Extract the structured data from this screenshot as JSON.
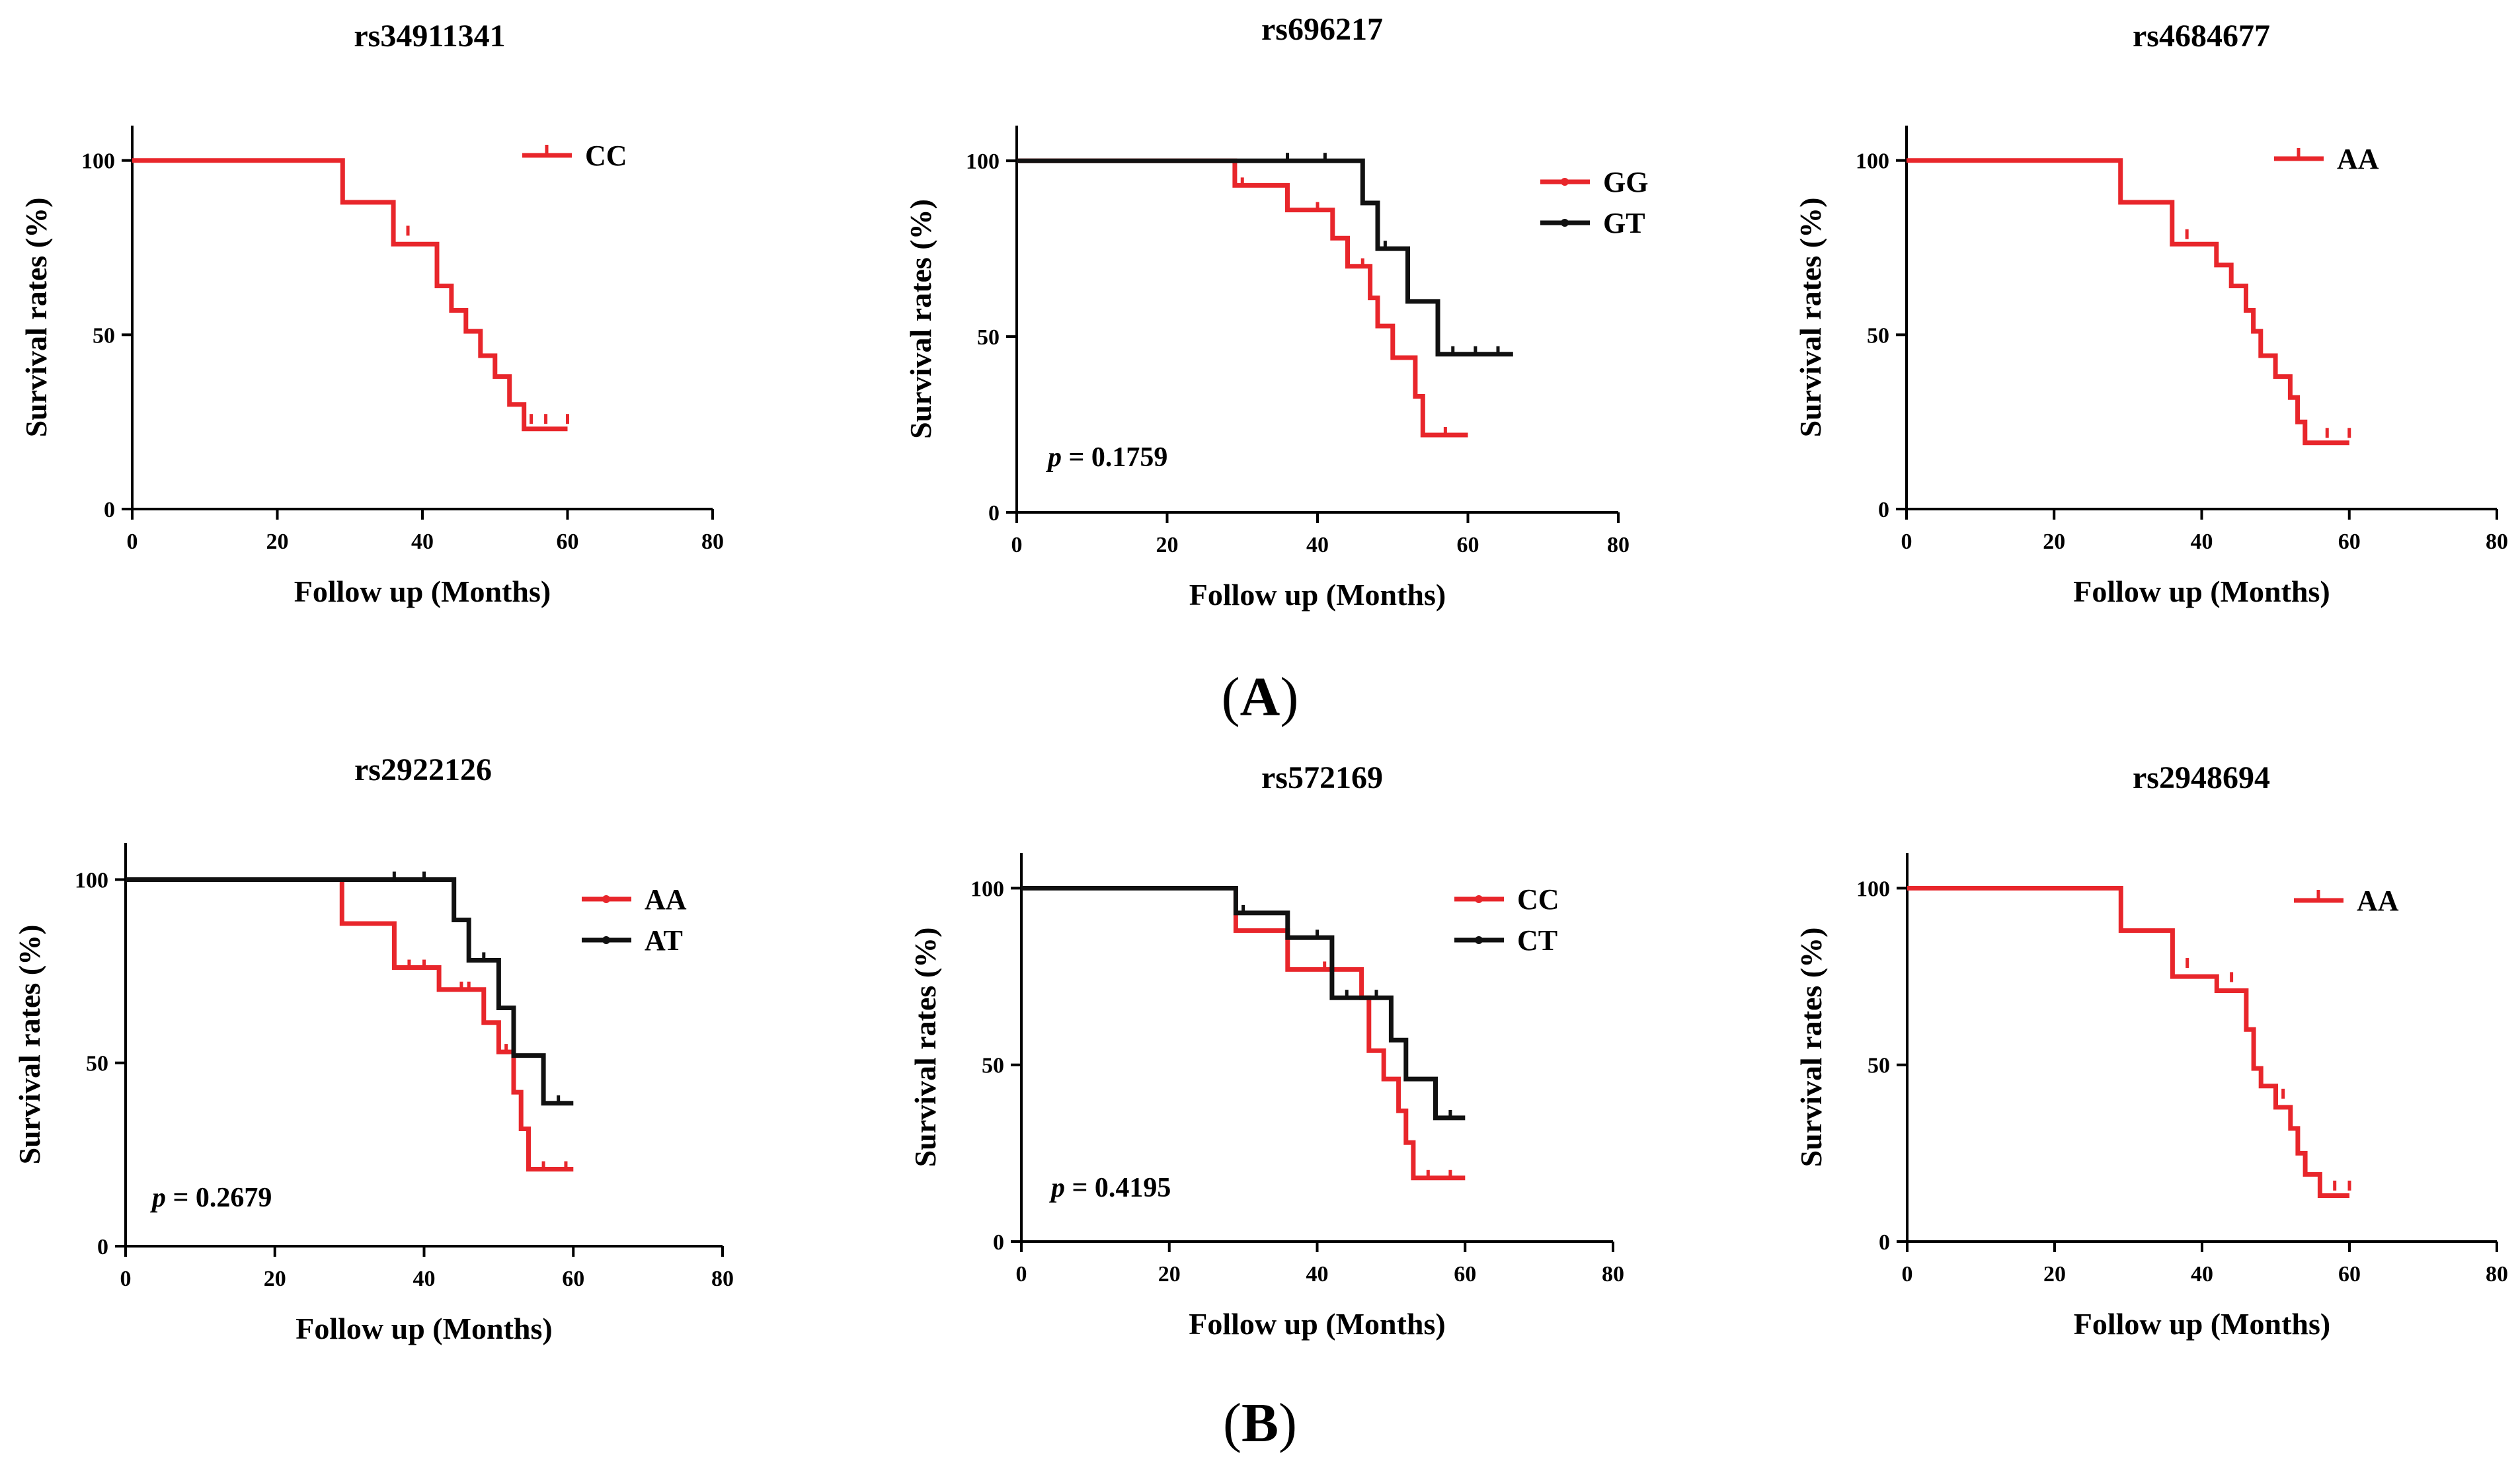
{
  "figure": {
    "panel_labels": [
      {
        "paren_open": "(",
        "letter": "A",
        "paren_close": ")"
      },
      {
        "paren_open": "(",
        "letter": "B",
        "paren_close": ")"
      }
    ],
    "colors": {
      "red": "#e8262b",
      "black": "#111111"
    }
  },
  "chart_data": [
    {
      "type": "line",
      "subtype": "kaplan-meier",
      "title": "rs34911341",
      "xlabel": "Follow up (Months)",
      "ylabel": "Survival rates (%)",
      "xlim": [
        0,
        80
      ],
      "ylim": [
        0,
        110
      ],
      "xticks": [
        0,
        20,
        40,
        60,
        80
      ],
      "yticks": [
        0,
        50,
        100
      ],
      "pvalue": null,
      "series": [
        {
          "name": "CC",
          "color": "#e8262b",
          "steps": [
            [
              0,
              100
            ],
            [
              29,
              100
            ],
            [
              29,
              88
            ],
            [
              36,
              88
            ],
            [
              36,
              76
            ],
            [
              42,
              76
            ],
            [
              42,
              64
            ],
            [
              44,
              64
            ],
            [
              44,
              57
            ],
            [
              46,
              57
            ],
            [
              46,
              51
            ],
            [
              48,
              51
            ],
            [
              48,
              44
            ],
            [
              50,
              44
            ],
            [
              50,
              38
            ],
            [
              52,
              38
            ],
            [
              52,
              30
            ],
            [
              54,
              30
            ],
            [
              54,
              23
            ],
            [
              60,
              23
            ]
          ],
          "censor": [
            [
              38,
              79
            ],
            [
              55,
              25
            ],
            [
              57,
              25
            ],
            [
              60,
              25
            ]
          ]
        }
      ]
    },
    {
      "type": "line",
      "subtype": "kaplan-meier",
      "title": "rs696217",
      "xlabel": "Follow up (Months)",
      "ylabel": "Survival rates (%)",
      "xlim": [
        0,
        80
      ],
      "ylim": [
        0,
        110
      ],
      "xticks": [
        0,
        20,
        40,
        60,
        80
      ],
      "yticks": [
        0,
        50,
        100
      ],
      "pvalue": {
        "label": "p",
        "text": " = 0.1759"
      },
      "series": [
        {
          "name": "GG",
          "color": "#e8262b",
          "steps": [
            [
              0,
              100
            ],
            [
              29,
              100
            ],
            [
              29,
              93
            ],
            [
              36,
              93
            ],
            [
              36,
              86
            ],
            [
              42,
              86
            ],
            [
              42,
              78
            ],
            [
              44,
              78
            ],
            [
              44,
              70
            ],
            [
              47,
              70
            ],
            [
              47,
              61
            ],
            [
              48,
              61
            ],
            [
              48,
              53
            ],
            [
              50,
              53
            ],
            [
              50,
              44
            ],
            [
              53,
              44
            ],
            [
              53,
              33
            ],
            [
              54,
              33
            ],
            [
              54,
              22
            ],
            [
              60,
              22
            ]
          ],
          "censor": [
            [
              30,
              93
            ],
            [
              40,
              86
            ],
            [
              46,
              70
            ],
            [
              50,
              44
            ],
            [
              57,
              22
            ]
          ]
        },
        {
          "name": "GT",
          "color": "#111111",
          "steps": [
            [
              0,
              100
            ],
            [
              46,
              100
            ],
            [
              46,
              88
            ],
            [
              48,
              88
            ],
            [
              48,
              75
            ],
            [
              52,
              75
            ],
            [
              52,
              60
            ],
            [
              56,
              60
            ],
            [
              56,
              45
            ],
            [
              66,
              45
            ]
          ],
          "censor": [
            [
              36,
              100
            ],
            [
              41,
              100
            ],
            [
              49,
              75
            ],
            [
              58,
              45
            ],
            [
              61,
              45
            ],
            [
              64,
              45
            ]
          ]
        }
      ]
    },
    {
      "type": "line",
      "subtype": "kaplan-meier",
      "title": "rs4684677",
      "xlabel": "Follow up (Months)",
      "ylabel": "Survival rates (%)",
      "xlim": [
        0,
        80
      ],
      "ylim": [
        0,
        110
      ],
      "xticks": [
        0,
        20,
        40,
        60,
        80
      ],
      "yticks": [
        0,
        50,
        100
      ],
      "pvalue": null,
      "series": [
        {
          "name": "AA",
          "color": "#e8262b",
          "steps": [
            [
              0,
              100
            ],
            [
              29,
              100
            ],
            [
              29,
              88
            ],
            [
              36,
              88
            ],
            [
              36,
              76
            ],
            [
              42,
              76
            ],
            [
              42,
              70
            ],
            [
              44,
              70
            ],
            [
              44,
              64
            ],
            [
              46,
              64
            ],
            [
              46,
              57
            ],
            [
              47,
              57
            ],
            [
              47,
              51
            ],
            [
              48,
              51
            ],
            [
              48,
              44
            ],
            [
              50,
              44
            ],
            [
              50,
              38
            ],
            [
              52,
              38
            ],
            [
              52,
              32
            ],
            [
              53,
              32
            ],
            [
              53,
              25
            ],
            [
              54,
              25
            ],
            [
              54,
              19
            ],
            [
              60,
              19
            ]
          ],
          "censor": [
            [
              38,
              78
            ],
            [
              57,
              21
            ],
            [
              60,
              21
            ]
          ]
        }
      ]
    },
    {
      "type": "line",
      "subtype": "kaplan-meier",
      "title": "rs2922126",
      "xlabel": "Follow up (Months)",
      "ylabel": "Survival rates (%)",
      "xlim": [
        0,
        80
      ],
      "ylim": [
        0,
        110
      ],
      "xticks": [
        0,
        20,
        40,
        60,
        80
      ],
      "yticks": [
        0,
        50,
        100
      ],
      "pvalue": {
        "label": "p",
        "text": " = 0.2679"
      },
      "series": [
        {
          "name": "AA",
          "color": "#e8262b",
          "steps": [
            [
              0,
              100
            ],
            [
              29,
              100
            ],
            [
              29,
              88
            ],
            [
              36,
              88
            ],
            [
              36,
              76
            ],
            [
              42,
              76
            ],
            [
              42,
              70
            ],
            [
              48,
              70
            ],
            [
              48,
              61
            ],
            [
              50,
              61
            ],
            [
              50,
              53
            ],
            [
              52,
              53
            ],
            [
              52,
              42
            ],
            [
              53,
              42
            ],
            [
              53,
              32
            ],
            [
              54,
              32
            ],
            [
              54,
              21
            ],
            [
              60,
              21
            ]
          ],
          "censor": [
            [
              38,
              76
            ],
            [
              40,
              76
            ],
            [
              45,
              70
            ],
            [
              46,
              70
            ],
            [
              51,
              53
            ],
            [
              56,
              21
            ],
            [
              59,
              21
            ]
          ]
        },
        {
          "name": "AT",
          "color": "#111111",
          "steps": [
            [
              0,
              100
            ],
            [
              44,
              100
            ],
            [
              44,
              89
            ],
            [
              46,
              89
            ],
            [
              46,
              78
            ],
            [
              50,
              78
            ],
            [
              50,
              65
            ],
            [
              52,
              65
            ],
            [
              52,
              52
            ],
            [
              56,
              52
            ],
            [
              56,
              39
            ],
            [
              60,
              39
            ]
          ],
          "censor": [
            [
              36,
              100
            ],
            [
              40,
              100
            ],
            [
              48,
              78
            ],
            [
              58,
              39
            ]
          ]
        }
      ]
    },
    {
      "type": "line",
      "subtype": "kaplan-meier",
      "title": "rs572169",
      "xlabel": "Follow up (Months)",
      "ylabel": "Survival rates (%)",
      "xlim": [
        0,
        80
      ],
      "ylim": [
        0,
        110
      ],
      "xticks": [
        0,
        20,
        40,
        60,
        80
      ],
      "yticks": [
        0,
        50,
        100
      ],
      "pvalue": {
        "label": "p",
        "text": " = 0.4195"
      },
      "series": [
        {
          "name": "CC",
          "color": "#e8262b",
          "steps": [
            [
              0,
              100
            ],
            [
              29,
              100
            ],
            [
              29,
              88
            ],
            [
              36,
              88
            ],
            [
              36,
              77
            ],
            [
              46,
              77
            ],
            [
              46,
              69
            ],
            [
              47,
              69
            ],
            [
              47,
              54
            ],
            [
              49,
              54
            ],
            [
              49,
              46
            ],
            [
              51,
              46
            ],
            [
              51,
              37
            ],
            [
              52,
              37
            ],
            [
              52,
              28
            ],
            [
              53,
              28
            ],
            [
              53,
              18
            ],
            [
              60,
              18
            ]
          ],
          "censor": [
            [
              41,
              77
            ],
            [
              55,
              18
            ],
            [
              58,
              18
            ]
          ]
        },
        {
          "name": "CT",
          "color": "#111111",
          "steps": [
            [
              0,
              100
            ],
            [
              29,
              100
            ],
            [
              29,
              93
            ],
            [
              36,
              93
            ],
            [
              36,
              86
            ],
            [
              42,
              86
            ],
            [
              42,
              69
            ],
            [
              46,
              69
            ],
            [
              46,
              69
            ],
            [
              50,
              69
            ],
            [
              50,
              57
            ],
            [
              52,
              57
            ],
            [
              52,
              46
            ],
            [
              56,
              46
            ],
            [
              56,
              35
            ],
            [
              60,
              35
            ]
          ],
          "censor": [
            [
              30,
              93
            ],
            [
              40,
              86
            ],
            [
              44,
              69
            ],
            [
              48,
              69
            ],
            [
              58,
              35
            ]
          ]
        }
      ]
    },
    {
      "type": "line",
      "subtype": "kaplan-meier",
      "title": "rs2948694",
      "xlabel": "Follow up (Months)",
      "ylabel": "Survival rates (%)",
      "xlim": [
        0,
        80
      ],
      "ylim": [
        0,
        110
      ],
      "xticks": [
        0,
        20,
        40,
        60,
        80
      ],
      "yticks": [
        0,
        50,
        100
      ],
      "pvalue": null,
      "series": [
        {
          "name": "AA",
          "color": "#e8262b",
          "steps": [
            [
              0,
              100
            ],
            [
              29,
              100
            ],
            [
              29,
              88
            ],
            [
              36,
              88
            ],
            [
              36,
              75
            ],
            [
              42,
              75
            ],
            [
              42,
              71
            ],
            [
              46,
              71
            ],
            [
              46,
              60
            ],
            [
              47,
              60
            ],
            [
              47,
              49
            ],
            [
              48,
              49
            ],
            [
              48,
              44
            ],
            [
              50,
              44
            ],
            [
              50,
              38
            ],
            [
              52,
              38
            ],
            [
              52,
              32
            ],
            [
              53,
              32
            ],
            [
              53,
              25
            ],
            [
              54,
              25
            ],
            [
              54,
              19
            ],
            [
              56,
              19
            ],
            [
              56,
              13
            ],
            [
              60,
              13
            ]
          ],
          "censor": [
            [
              38,
              78
            ],
            [
              44,
              74
            ],
            [
              51,
              41
            ],
            [
              58,
              15
            ],
            [
              60,
              15
            ]
          ]
        }
      ]
    }
  ]
}
